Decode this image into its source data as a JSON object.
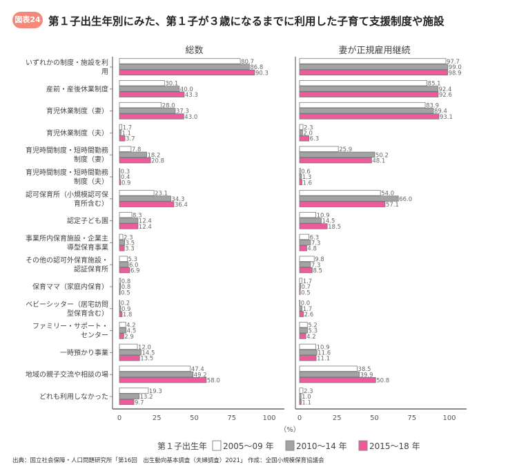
{
  "header": {
    "badge": "図表24",
    "title": "第１子出生年別にみた、第１子が３歳になるまでに利用した子育て支援制度や施設"
  },
  "source": "出典：国立社会保障・人口問題研究所「第16回　出生動向基本調査（夫婦調査）2021」 作成：全国小規模保育協議会",
  "colors": {
    "s2005": "#ffffff",
    "s2010": "#a3a3a6",
    "s2015": "#ee5a9a",
    "border": "#777777"
  },
  "chart_data": {
    "type": "bar",
    "orientation": "horizontal",
    "unit_label": "（%）",
    "xlim": [
      0,
      100
    ],
    "xticks": [
      "0",
      "25",
      "50",
      "75",
      "100"
    ],
    "legend": {
      "title": "第１子出生年",
      "placement": "bottom"
    },
    "categories": [
      "いずれかの制度・施設を利\n用",
      "産前・産後休業制度",
      "育児休業制度（妻）",
      "育児休業制度（夫）",
      "育児時間制度・短時間勤務\n制度（妻）",
      "育児時間制度・短時間勤務\n制度（夫）",
      "認可保育所（小規模認可保\n育所含む）",
      "認定子ども園",
      "事業所内保育施設・企業主\n導型保育事業",
      "その他の認可外保育施設・\n認証保育所",
      "保育ママ（家庭内保育）",
      "ベビーシッター（居宅訪問\n型保育含む）",
      "ファミリー・サポート・\nセンター",
      "一時預かり事業",
      "地域の親子交流や相談の場",
      "どれも利用しなかった"
    ],
    "series_names": [
      "2005～09 年",
      "2010～14 年",
      "2015～18 年"
    ],
    "panels": [
      {
        "title": "総数",
        "series": [
          {
            "name": "2005～09 年",
            "values": [
              80.7,
              30.1,
              28.0,
              1.7,
              7.8,
              0.3,
              23.1,
              8.3,
              2.3,
              5.3,
              0.8,
              0.2,
              4.2,
              12.0,
              47.4,
              19.3
            ]
          },
          {
            "name": "2010～14 年",
            "values": [
              86.8,
              40.0,
              37.3,
              1.1,
              18.2,
              0.4,
              34.3,
              12.4,
              3.5,
              6.0,
              0.8,
              0.9,
              4.5,
              14.5,
              49.2,
              13.2
            ]
          },
          {
            "name": "2015～18 年",
            "values": [
              90.3,
              43.3,
              43.0,
              3.7,
              20.8,
              0.9,
              36.4,
              12.4,
              3.3,
              6.9,
              0.5,
              1.8,
              2.9,
              13.5,
              58.0,
              9.7
            ]
          }
        ]
      },
      {
        "title": "妻が正規雇用継続",
        "series": [
          {
            "name": "2005～09 年",
            "values": [
              97.7,
              85.1,
              83.9,
              2.3,
              25.9,
              0.6,
              54.0,
              10.9,
              6.3,
              9.8,
              1.7,
              0.0,
              5.2,
              10.9,
              38.5,
              2.3
            ]
          },
          {
            "name": "2010～14 年",
            "values": [
              99.0,
              92.4,
              89.4,
              2.0,
              50.2,
              1.3,
              66.0,
              14.5,
              7.3,
              7.3,
              0.7,
              1.7,
              5.3,
              11.6,
              39.9,
              1.0
            ]
          },
          {
            "name": "2015～18 年",
            "values": [
              98.9,
              92.6,
              93.1,
              6.3,
              48.1,
              1.6,
              57.1,
              18.5,
              4.8,
              8.5,
              0.5,
              2.6,
              4.2,
              11.1,
              50.8,
              1.1
            ]
          }
        ]
      }
    ]
  }
}
